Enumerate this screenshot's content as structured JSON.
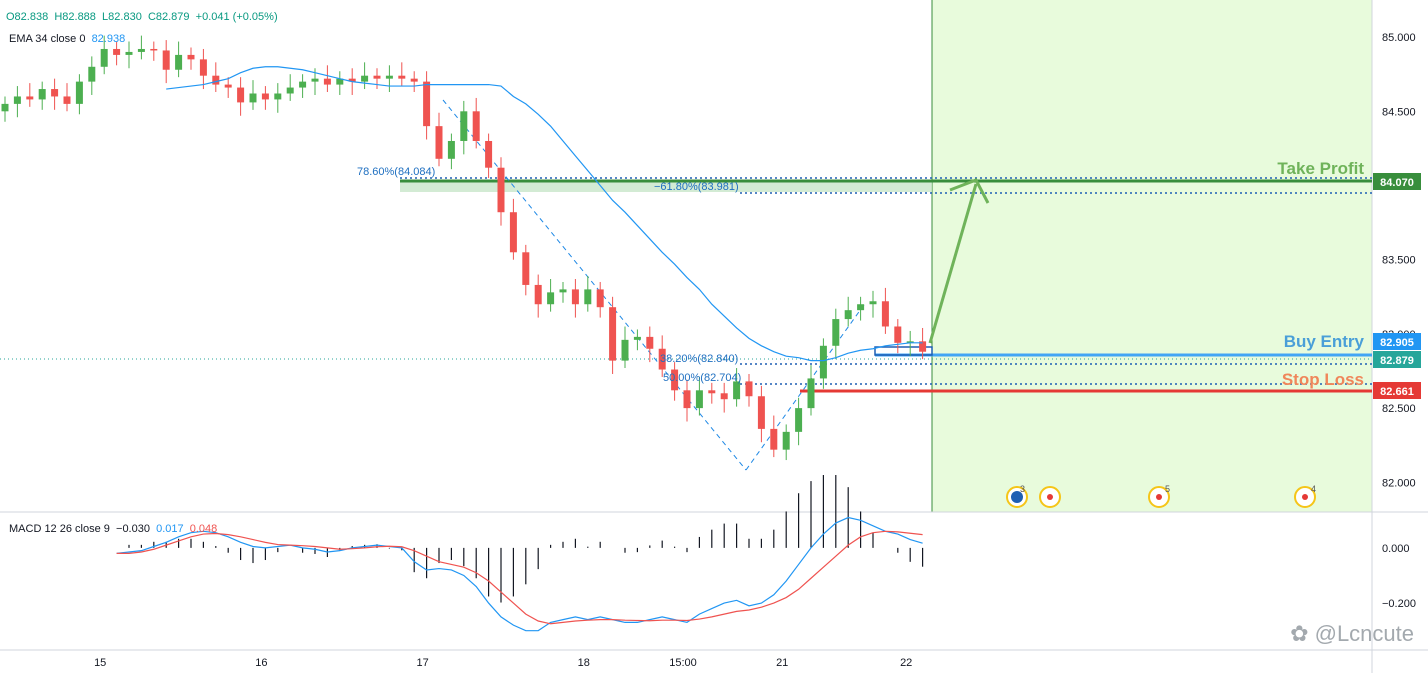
{
  "legend": {
    "ohlc": {
      "o": "O82.838",
      "h": "H82.888",
      "l": "L82.830",
      "c": "C82.879",
      "chg": "+0.041 (+0.05%)"
    },
    "ema_label": "EMA 34 close 0",
    "ema_value": "82.938",
    "macd_label": "MACD 12 26 close 9",
    "macd_hist": "−0.030",
    "macd_line": "0.017",
    "macd_signal": "0.048"
  },
  "colors": {
    "up": "#26a69a",
    "up_candle": "#4caf50",
    "down": "#ef5350",
    "ema": "#2196f3",
    "tp": "#388e3c",
    "tp_text": "#6fb35a",
    "entry": "#2196f3",
    "entry_text": "#4a9fd8",
    "sl": "#e53935",
    "sl_text": "#f0865a",
    "zone": "#e8fbdc",
    "macd_line": "#2196f3",
    "macd_signal": "#ef5350"
  },
  "annotations": {
    "take_profit": "Take Profit",
    "buy_entry": "Buy Entry",
    "stop_loss": "Stop Loss",
    "fib_786": "78.60%(84.084)",
    "fib_618": "−61.80%(83.981)",
    "fib_382": "38.20%(82.840)",
    "fib_500": "50.00%(82.704)"
  },
  "price_tags": {
    "tp": "84.070",
    "entry": "82.905",
    "current": "82.879",
    "sl": "82.661"
  },
  "event_badges": [
    "3",
    "5",
    "4"
  ],
  "watermark": "@Lcncute",
  "chart_data": {
    "type": "candlestick",
    "price_axis": {
      "ticks": [
        "85.000",
        "84.500",
        "84.000",
        "83.500",
        "83.000",
        "82.500",
        "82.000"
      ],
      "range": [
        81.8,
        85.25
      ]
    },
    "macd_axis": {
      "ticks": [
        "0.000",
        "−0.200"
      ],
      "range": [
        -0.37,
        0.13
      ]
    },
    "time_axis": {
      "labels": [
        "15",
        "16",
        "17",
        "18",
        "15:00",
        "21",
        "22"
      ],
      "label_index": [
        8,
        21,
        34,
        47,
        55,
        63,
        73
      ]
    },
    "levels": {
      "take_profit": 84.07,
      "buy_entry": 82.905,
      "stop_loss": 82.661,
      "fib_786": 84.084,
      "fib_618": 83.981,
      "fib_382": 82.84,
      "fib_500": 82.704
    },
    "close": [
      84.55,
      84.6,
      84.58,
      84.65,
      84.6,
      84.55,
      84.7,
      84.8,
      84.92,
      84.88,
      84.9,
      84.92,
      84.91,
      84.78,
      84.88,
      84.85,
      84.74,
      84.68,
      84.66,
      84.56,
      84.62,
      84.58,
      84.62,
      84.66,
      84.7,
      84.72,
      84.68,
      84.72,
      84.7,
      84.74,
      84.72,
      84.74,
      84.72,
      84.7,
      84.4,
      84.18,
      84.3,
      84.5,
      84.3,
      84.12,
      83.82,
      83.55,
      83.33,
      83.2,
      83.28,
      83.3,
      83.2,
      83.3,
      83.18,
      82.82,
      82.96,
      82.98,
      82.9,
      82.76,
      82.62,
      82.5,
      82.62,
      82.6,
      82.56,
      82.68,
      82.58,
      82.36,
      82.22,
      82.34,
      82.5,
      82.7,
      82.92,
      83.1,
      83.16,
      83.2,
      83.22,
      83.05,
      82.94,
      82.95,
      82.88
    ],
    "ema": [
      84.65,
      84.66,
      84.67,
      84.68,
      84.7,
      84.72,
      84.76,
      84.79,
      84.8,
      84.8,
      84.79,
      84.78,
      84.76,
      84.74,
      84.72,
      84.7,
      84.69,
      84.68,
      84.67,
      84.67,
      84.67,
      84.68,
      84.68,
      84.68,
      84.68,
      84.68,
      84.68,
      84.67,
      84.6,
      84.55,
      84.48,
      84.4,
      84.3,
      84.2,
      84.1,
      84.0,
      83.9,
      83.82,
      83.73,
      83.64,
      83.55,
      83.47,
      83.38,
      83.3,
      83.2,
      83.12,
      83.04,
      82.97,
      82.92,
      82.88,
      82.85,
      82.84,
      82.82,
      82.82,
      82.84,
      82.87,
      82.89,
      82.9,
      82.92,
      82.93,
      82.94,
      82.94
    ],
    "macd": [
      -0.02,
      -0.015,
      -0.01,
      0.005,
      0.02,
      0.04,
      0.055,
      0.06,
      0.055,
      0.04,
      0.02,
      0.005,
      0.0,
      0.005,
      0.01,
      0.0,
      -0.005,
      -0.015,
      -0.01,
      0.0,
      0.005,
      0.01,
      0.005,
      0.0,
      -0.05,
      -0.08,
      -0.075,
      -0.08,
      -0.1,
      -0.14,
      -0.2,
      -0.25,
      -0.28,
      -0.3,
      -0.3,
      -0.27,
      -0.26,
      -0.25,
      -0.26,
      -0.25,
      -0.26,
      -0.27,
      -0.27,
      -0.26,
      -0.25,
      -0.26,
      -0.27,
      -0.24,
      -0.22,
      -0.2,
      -0.19,
      -0.21,
      -0.2,
      -0.17,
      -0.12,
      -0.06,
      0.0,
      0.05,
      0.09,
      0.11,
      0.1,
      0.08,
      0.06,
      0.05,
      0.03,
      0.017
    ],
    "signal": [
      -0.02,
      -0.02,
      -0.015,
      -0.005,
      0.01,
      0.025,
      0.04,
      0.05,
      0.052,
      0.048,
      0.04,
      0.03,
      0.02,
      0.012,
      0.01,
      0.008,
      0.005,
      0.0,
      -0.005,
      -0.003,
      0.0,
      0.004,
      0.006,
      0.004,
      -0.01,
      -0.03,
      -0.05,
      -0.06,
      -0.07,
      -0.09,
      -0.12,
      -0.16,
      -0.2,
      -0.24,
      -0.265,
      -0.275,
      -0.27,
      -0.265,
      -0.262,
      -0.26,
      -0.26,
      -0.262,
      -0.263,
      -0.264,
      -0.262,
      -0.262,
      -0.263,
      -0.258,
      -0.25,
      -0.24,
      -0.23,
      -0.225,
      -0.215,
      -0.2,
      -0.18,
      -0.15,
      -0.11,
      -0.07,
      -0.03,
      0.01,
      0.04,
      0.055,
      0.06,
      0.058,
      0.053,
      0.048
    ]
  }
}
